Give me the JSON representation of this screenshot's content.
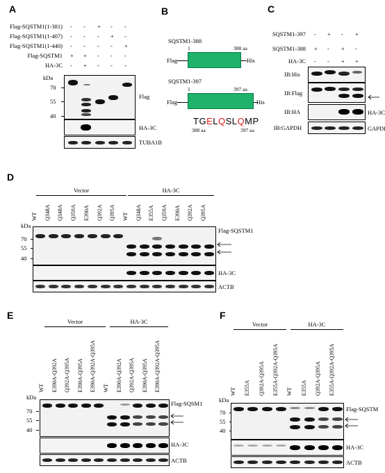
{
  "panels": {
    "A": {
      "label": "A",
      "conditions": [
        "Flag-SQSTM1(1-381)",
        "Flag-SQSTM1(1-407)",
        "Flag-SQSTM1(1-440)",
        "Flag-SQSTM1",
        "HA-3C"
      ],
      "signs": [
        [
          "-",
          "-",
          "+",
          "-",
          "-"
        ],
        [
          "-",
          "-",
          "-",
          "+",
          "-"
        ],
        [
          "-",
          "-",
          "-",
          "-",
          "+"
        ],
        [
          "+",
          "+",
          "-",
          "-",
          "-"
        ],
        [
          "-",
          "+",
          "-",
          "-",
          "-"
        ]
      ],
      "kda": "kDa",
      "markers": [
        "70",
        "55",
        "40"
      ],
      "labels": [
        "Flag",
        "HA-3C",
        "TUBA1B"
      ]
    },
    "B": {
      "label": "B",
      "construct1": {
        "name": "SQSTM1-388",
        "start": "1",
        "end": "388 aa",
        "left": "Flag",
        "right": "His"
      },
      "construct2": {
        "name": "SQSTM1-397",
        "start": "1",
        "end": "397 aa",
        "left": "Flag",
        "right": "His"
      },
      "seq": [
        {
          "c": "T",
          "red": false
        },
        {
          "c": "G",
          "red": false
        },
        {
          "c": "E",
          "red": true
        },
        {
          "c": "L",
          "red": false
        },
        {
          "c": "Q",
          "red": true
        },
        {
          "c": "S",
          "red": false
        },
        {
          "c": "L",
          "red": false
        },
        {
          "c": "Q",
          "red": true
        },
        {
          "c": "M",
          "red": false
        },
        {
          "c": "P",
          "red": false
        }
      ],
      "seq_start": "388 aa",
      "seq_end": "397 aa"
    },
    "C": {
      "label": "C",
      "conditions": [
        "SQSTM1-397",
        "SQSTM1-388",
        "HA-3C"
      ],
      "signs": [
        [
          "-",
          "+",
          "-",
          "+"
        ],
        [
          "+",
          "-",
          "+",
          "-"
        ],
        [
          "-",
          "-",
          "+",
          "+"
        ]
      ],
      "labels": [
        "IB:His",
        "IB:Flag",
        "IB:HA",
        "IB:GAPDH"
      ],
      "right_labels": [
        "HA-3C",
        "GAPDH"
      ]
    },
    "D": {
      "label": "D",
      "groups": [
        "Vector",
        "HA-3C"
      ],
      "lanes": [
        "WT",
        "Q348A",
        "Q348A",
        "Q359A",
        "E390A",
        "Q392A",
        "Q395A",
        "WT",
        "Q348A",
        "E355A",
        "Q359A",
        "E390A",
        "Q392A",
        "Q395A"
      ],
      "kda": "kDa",
      "markers": [
        "70",
        "55",
        "40"
      ],
      "labels": [
        "Flag-SQSTM1",
        "HA-3C",
        "ACTB"
      ]
    },
    "E": {
      "label": "E",
      "groups": [
        "Vector",
        "HA-3C"
      ],
      "lanes": [
        "WT",
        "E390A-Q392A",
        "Q392A-Q395A",
        "E390A-Q395A",
        "E390A-Q392A-Q395A",
        "WT",
        "E390A-Q392A",
        "Q392A-Q395A",
        "E390A-Q395A",
        "E390A-Q392A-Q395A"
      ],
      "kda": "kDa",
      "markers": [
        "70",
        "55",
        "40"
      ],
      "labels": [
        "Flag-SQSM1",
        "HA-3C",
        "ACTB"
      ]
    },
    "F": {
      "label": "F",
      "groups": [
        "Vector",
        "HA-3C"
      ],
      "lanes": [
        "WT",
        "E355A",
        "Q392A-Q395A",
        "E355A-Q392A-Q395A",
        "WT",
        "E355A",
        "Q392A-Q395A",
        "E355A-Q392A-Q395A"
      ],
      "kda": "kDa",
      "markers": [
        "70",
        "55",
        "40"
      ],
      "labels": [
        "Flag-SQSTM",
        "HA-3C",
        "ACTB"
      ]
    }
  }
}
